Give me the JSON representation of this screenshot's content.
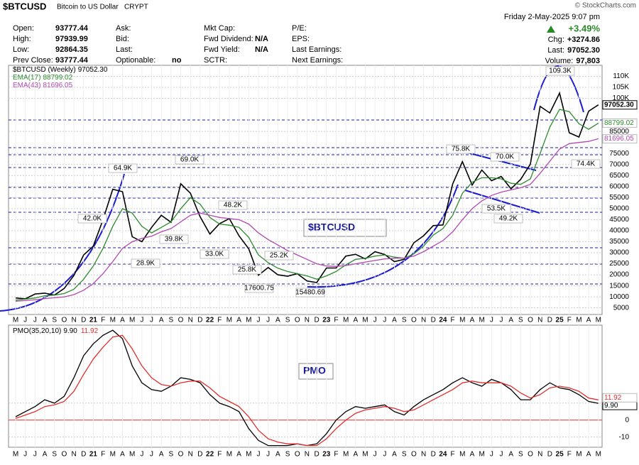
{
  "header": {
    "symbol": "$BTCUSD",
    "name": "Bitcoin to US Dollar",
    "exchange": "CRYPT",
    "source": "© StockCharts.com",
    "date": "Friday  2-May-2025  9:07 pm",
    "change_pct": "+3.49%",
    "fields": [
      {
        "label": "Open:",
        "value": "93777.44"
      },
      {
        "label": "High:",
        "value": "97939.99"
      },
      {
        "label": "Low:",
        "value": "92864.35"
      },
      {
        "label": "Prev Close:",
        "value": "93777.44"
      },
      {
        "label": "Ask:"
      },
      {
        "label": "Bid:"
      },
      {
        "label": "Last:"
      },
      {
        "label": "Optionable:",
        "value": "no"
      },
      {
        "label": "Mkt Cap:"
      },
      {
        "label": "Fwd Dividend:",
        "value": "N/A"
      },
      {
        "label": "Fwd Yield:",
        "value": "N/A"
      },
      {
        "label": "SCTR:"
      },
      {
        "label": "P/E:"
      },
      {
        "label": "EPS:"
      },
      {
        "label": "Last Earnings:"
      },
      {
        "label": "Next Earnings:"
      }
    ],
    "right_fields": [
      {
        "label": "Chg:",
        "value": "+3274.86"
      },
      {
        "label": "Last:",
        "value": "97052.30"
      },
      {
        "label": "Volume:",
        "value": "97,803"
      }
    ]
  },
  "chart_data": [
    {
      "type": "line",
      "title": "$BTCUSD",
      "grid": true,
      "categories": [
        "M",
        "J",
        "J",
        "A",
        "S",
        "O",
        "N",
        "D",
        "21",
        "F",
        "M",
        "A",
        "M",
        "J",
        "J",
        "A",
        "S",
        "O",
        "N",
        "D",
        "22",
        "F",
        "M",
        "A",
        "M",
        "J",
        "J",
        "A",
        "S",
        "O",
        "N",
        "D",
        "23",
        "F",
        "M",
        "A",
        "M",
        "J",
        "J",
        "A",
        "S",
        "O",
        "N",
        "D",
        "24",
        "F",
        "M",
        "A",
        "M",
        "J",
        "J",
        "A",
        "S",
        "O",
        "N",
        "D",
        "25",
        "F",
        "M",
        "A",
        "M"
      ],
      "series": [
        {
          "name": "$BTCUSD (Weekly)",
          "color": "#000000",
          "last": {
            "value": 97052.3,
            "label": "97052.30"
          },
          "values": [
            9500,
            9100,
            11300,
            11700,
            10800,
            13800,
            19700,
            29000,
            33000,
            45000,
            58800,
            57700,
            37300,
            35000,
            41500,
            47000,
            43800,
            61300,
            57000,
            46300,
            38500,
            43200,
            45500,
            37700,
            31800,
            19800,
            23300,
            20000,
            19400,
            20500,
            17200,
            16500,
            23100,
            23100,
            28500,
            29300,
            27200,
            30500,
            29200,
            26000,
            27000,
            34500,
            37700,
            42300,
            42600,
            61200,
            71300,
            60700,
            67500,
            62700,
            64600,
            59000,
            63300,
            70200,
            96400,
            93400,
            102400,
            84400,
            82500,
            94200,
            97052.3
          ]
        },
        {
          "name": "EMA(17)",
          "color": "#2e8b2e",
          "last": {
            "value": 88799.02,
            "label": "88799.02"
          },
          "values": [
            8500,
            9000,
            9500,
            10500,
            10800,
            11500,
            13500,
            18000,
            24000,
            32000,
            42000,
            50000,
            48000,
            42000,
            39000,
            41500,
            44000,
            50000,
            55000,
            52000,
            46000,
            43000,
            42500,
            41500,
            37000,
            29000,
            25500,
            23000,
            21500,
            20500,
            19500,
            18000,
            19500,
            21500,
            24500,
            27000,
            27500,
            28500,
            29000,
            28000,
            27500,
            29500,
            33000,
            38000,
            41000,
            47000,
            57000,
            62000,
            64000,
            64000,
            63500,
            61500,
            61000,
            63500,
            75000,
            87000,
            95000,
            94000,
            88500,
            86000,
            88799.02
          ]
        },
        {
          "name": "EMA(43)",
          "color": "#b04ab0",
          "last": {
            "value": 81696.05,
            "label": "81696.05"
          },
          "values": [
            8000,
            8300,
            8700,
            9200,
            9600,
            10000,
            11000,
            13000,
            16000,
            20500,
            26000,
            32000,
            35000,
            36500,
            37500,
            39500,
            41000,
            44000,
            47000,
            48000,
            47000,
            46000,
            45500,
            45000,
            43000,
            39000,
            36000,
            33500,
            31000,
            29000,
            27000,
            25000,
            24000,
            23800,
            24200,
            25000,
            25800,
            26500,
            27200,
            27500,
            27600,
            28500,
            30500,
            33000,
            35500,
            39500,
            45000,
            50000,
            53500,
            56000,
            57500,
            58500,
            59500,
            61000,
            66000,
            71500,
            77000,
            79500,
            80000,
            80500,
            81696.05
          ]
        }
      ],
      "ylim": [
        2000,
        115000
      ],
      "yticks": [
        {
          "value": 110000,
          "label": "110K"
        },
        {
          "value": 105000,
          "label": "105K"
        },
        {
          "value": 100000,
          "label": "100K"
        },
        85000,
        75000,
        70000,
        65000,
        60000,
        55000,
        50000,
        45000,
        40000,
        35000,
        30000,
        25000,
        20000,
        15000,
        10000,
        5000
      ],
      "annotations": [
        {
          "label": "42.0K",
          "value": 42000
        },
        {
          "label": "64.9K",
          "value": 64900
        },
        {
          "label": "28.9K",
          "value": 28900
        },
        {
          "label": "39.8K",
          "value": 39800
        },
        {
          "label": "69.0K",
          "value": 69000
        },
        {
          "label": "33.0K",
          "value": 33000
        },
        {
          "label": "48.2K",
          "value": 48200
        },
        {
          "label": "25.8K",
          "value": 25800
        },
        {
          "label": "25.2K",
          "value": 25200
        },
        {
          "label": "17600.75",
          "value": 17600.75
        },
        {
          "label": "15480.69",
          "value": 15480.69
        },
        {
          "label": "75.8K",
          "value": 75800
        },
        {
          "label": "70.0K",
          "value": 70000
        },
        {
          "label": "53.5K",
          "value": 53500
        },
        {
          "label": "49.2K",
          "value": 49200
        },
        {
          "label": "109.3K",
          "value": 109300
        },
        {
          "label": "74.4K",
          "value": 74400
        }
      ]
    },
    {
      "type": "line",
      "title": "PMO",
      "grid": true,
      "categories": [
        "M",
        "J",
        "J",
        "A",
        "S",
        "O",
        "N",
        "D",
        "21",
        "F",
        "M",
        "A",
        "M",
        "J",
        "J",
        "A",
        "S",
        "O",
        "N",
        "D",
        "22",
        "F",
        "M",
        "A",
        "M",
        "J",
        "J",
        "A",
        "S",
        "O",
        "N",
        "D",
        "23",
        "F",
        "M",
        "A",
        "M",
        "J",
        "J",
        "A",
        "S",
        "O",
        "N",
        "D",
        "24",
        "F",
        "M",
        "A",
        "M",
        "J",
        "J",
        "A",
        "S",
        "O",
        "N",
        "D",
        "25",
        "F",
        "M",
        "A",
        "M"
      ],
      "series": [
        {
          "name": "PMO(35,20,10)",
          "color": "#000000",
          "last": {
            "value": 9.9,
            "label": "9.90"
          },
          "values": [
            2,
            5,
            8,
            12,
            10,
            14,
            25,
            38,
            45,
            50,
            53,
            48,
            32,
            22,
            18,
            17,
            20,
            25,
            24,
            22,
            15,
            10,
            8,
            5,
            -5,
            -12,
            -15,
            -15,
            -15,
            -14,
            -15,
            -14,
            -8,
            0,
            5,
            8,
            7,
            8,
            9,
            5,
            3,
            8,
            12,
            15,
            18,
            22,
            25,
            22,
            20,
            24,
            22,
            18,
            12,
            12,
            18,
            22,
            19,
            18,
            15,
            11,
            9.9
          ]
        },
        {
          "color": "#e03030",
          "last": {
            "value": 11.92,
            "label": "11.92"
          },
          "values": [
            1,
            3,
            5,
            8,
            9,
            11,
            17,
            27,
            36,
            43,
            49,
            50,
            42,
            32,
            25,
            21,
            20,
            22,
            23,
            23,
            19,
            14,
            11,
            8,
            2,
            -6,
            -11,
            -13,
            -14,
            -14,
            -15,
            -15,
            -11,
            -5,
            0,
            4,
            6,
            7,
            8,
            7,
            5,
            6,
            9,
            12,
            15,
            18,
            22,
            23,
            22,
            22,
            22,
            20,
            16,
            13,
            15,
            19,
            20,
            19,
            17,
            13,
            11.92
          ]
        }
      ],
      "ylim": [
        -16,
        56
      ],
      "yticks": [
        -10,
        0,
        10
      ]
    }
  ]
}
